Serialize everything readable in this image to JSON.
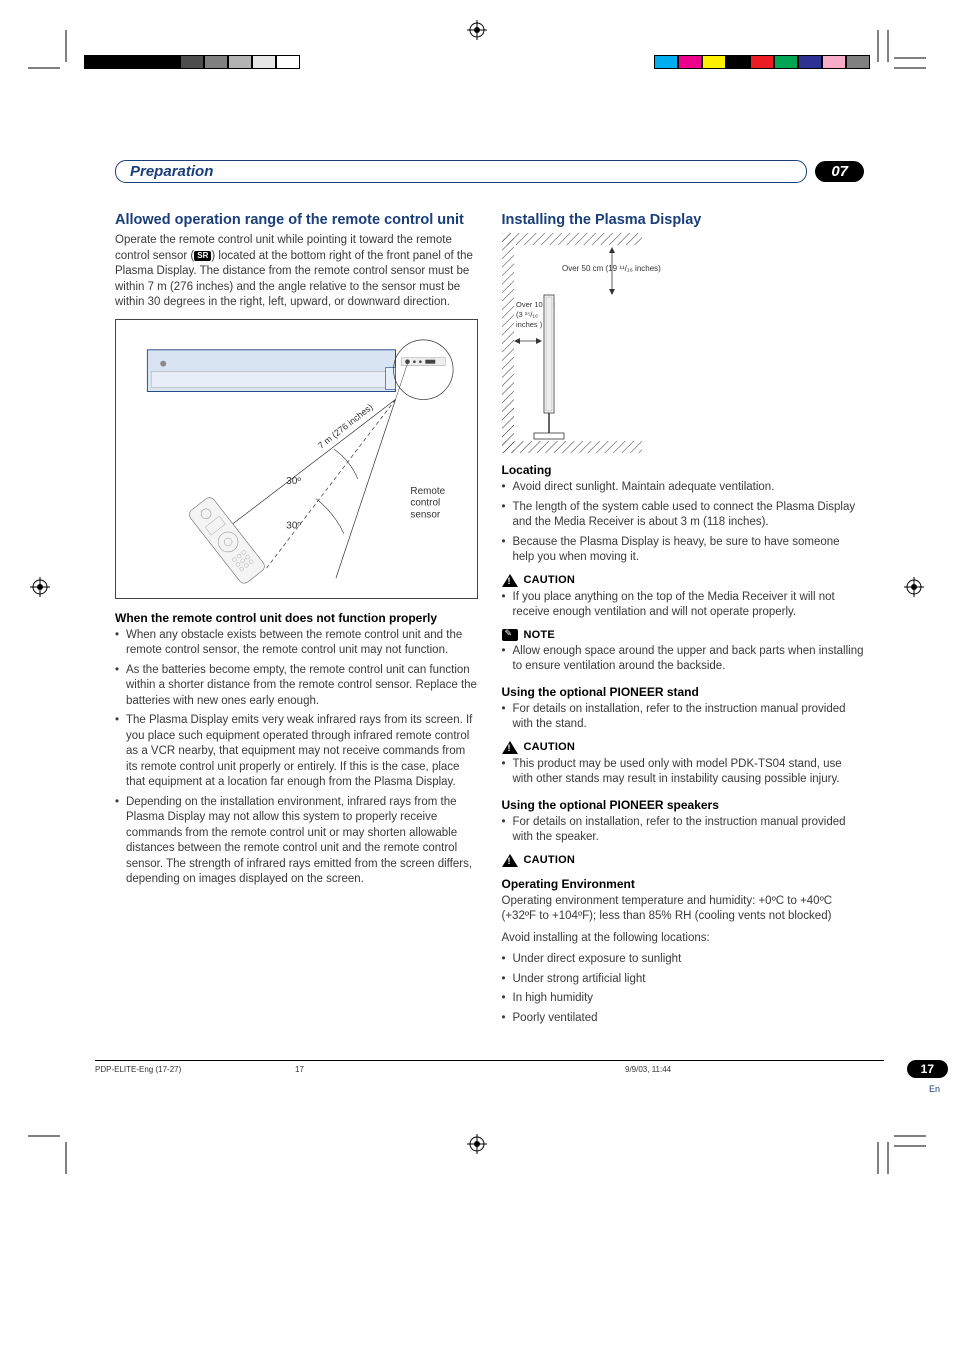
{
  "meta": {
    "chapter_badge": "07",
    "chapter_title": "Preparation",
    "page_number": "17",
    "page_lang": "En",
    "footer_left": "PDP-ELITE-Eng (17-27)",
    "footer_mid": "17",
    "footer_right": "9/9/03, 11:44",
    "colors": {
      "accent": "#1a3e7a",
      "body_text": "#3a3a3a",
      "black": "#000000",
      "white": "#ffffff"
    },
    "print_color_bars_left": [
      "#000000",
      "#000000",
      "#000000",
      "#000000",
      "#4d4d4d",
      "#808080",
      "#b3b3b3",
      "#e6e6e6",
      "#ffffff"
    ],
    "print_color_bars_right": [
      "#00aeef",
      "#ec008c",
      "#fff200",
      "#000000",
      "#ed1c24",
      "#00a651",
      "#2e3192",
      "#f7adc8",
      "#808080"
    ]
  },
  "left": {
    "h2": "Allowed operation range of the remote control unit",
    "intro": "Operate the remote control unit while pointing it toward the remote control sensor (      ) located at the bottom right of the front panel of the Plasma Display. The distance from the remote control sensor must be within 7 m (276 inches) and the angle relative to the sensor must be within 30 degrees in the right, left, upward, or downward direction.",
    "sr_label": "SR",
    "figure": {
      "distance_label": "7 m (276 inches)",
      "angle_upper": "30º",
      "angle_lower": "30º",
      "sensor_label_1": "Remote",
      "sensor_label_2": "control",
      "sensor_label_3": "sensor"
    },
    "h3": "When the remote control unit does not function properly",
    "bullets": [
      "When any obstacle exists between the remote control unit and the remote control sensor, the remote control unit may not function.",
      "As the batteries become empty, the remote control unit can function within a shorter distance from the remote control sensor. Replace the batteries with new ones early enough.",
      "The Plasma Display emits very weak infrared rays from its screen. If you place such equipment operated through infrared remote control as a VCR nearby, that equipment may not receive commands from its remote control unit properly or entirely. If this is the case, place that equipment at a location far enough from the Plasma Display.",
      "Depending on the installation environment, infrared rays from the Plasma Display may not allow this system to properly receive commands from the remote control unit or may shorten allowable distances between the remote control unit and the remote control sensor. The strength of infrared rays emitted from the screen differs, depending on images displayed on the screen."
    ]
  },
  "right": {
    "h2": "Installing the Plasma Display",
    "figure": {
      "top_clearance": "Over 50 cm (19 ¹¹/₁₆ inches)",
      "side_clearance_1": "Over 10 cm",
      "side_clearance_2": "(3 ¹⁵/₁₆",
      "side_clearance_3": "inches )"
    },
    "locating_h3": "Locating",
    "locating_bullets": [
      "Avoid direct sunlight. Maintain adequate ventilation.",
      "The length of the system cable used to connect the Plasma Display and the Media Receiver is about 3 m (118 inches).",
      "Because the Plasma Display is heavy, be sure to have someone help you when moving it."
    ],
    "caution1_label": "CAUTION",
    "caution1_bullets": [
      "If you place anything on the top of the Media Receiver it will not receive enough ventilation and will not operate properly."
    ],
    "note_label": "NOTE",
    "note_bullets": [
      "Allow enough space around the upper and back parts when installing to ensure ventilation around the backside."
    ],
    "stand_h3": "Using the optional PIONEER stand",
    "stand_bullets": [
      "For details on installation, refer to the instruction manual provided with the stand."
    ],
    "caution2_label": "CAUTION",
    "caution2_bullets": [
      "This product may be used only with model PDK-TS04 stand, use with other stands may result in instability causing possible injury."
    ],
    "speakers_h3": "Using the optional PIONEER speakers",
    "speakers_bullets": [
      "For details on installation, refer to the instruction manual provided with the speaker."
    ],
    "caution3_label": "CAUTION",
    "env_h3": "Operating Environment",
    "env_p1": "Operating environment temperature and humidity: +0ºC to +40ºC (+32ºF to +104ºF); less than 85% RH (cooling vents not blocked)",
    "env_p2": "Avoid installing at the following locations:",
    "env_bullets": [
      "Under direct exposure to sunlight",
      "Under strong artificial light",
      "In high humidity",
      "Poorly ventilated"
    ]
  }
}
